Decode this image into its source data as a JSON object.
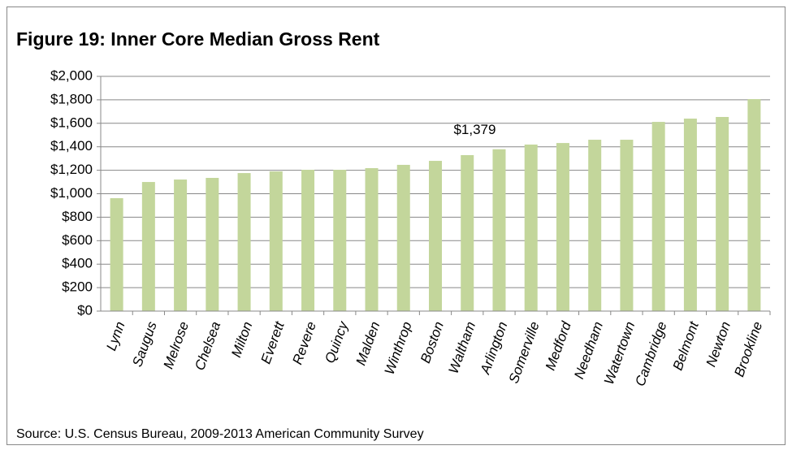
{
  "chart_data": {
    "type": "bar",
    "title": "Figure 19: Inner Core Median Gross Rent",
    "source": "Source: U.S. Census Bureau, 2009-2013 American Community Survey",
    "categories": [
      "Lynn",
      "Saugus",
      "Melrose",
      "Chelsea",
      "Milton",
      "Everett",
      "Revere",
      "Quincy",
      "Malden",
      "Winthrop",
      "Boston",
      "Waltham",
      "Arlington",
      "Somerville",
      "Medford",
      "Needham",
      "Watertown",
      "Cambridge",
      "Belmont",
      "Newton",
      "Brookline"
    ],
    "values": [
      962,
      1100,
      1121,
      1135,
      1176,
      1190,
      1204,
      1204,
      1218,
      1246,
      1280,
      1329,
      1379,
      1419,
      1432,
      1460,
      1460,
      1612,
      1640,
      1654,
      1806
    ],
    "value_labels": [
      null,
      null,
      null,
      null,
      null,
      null,
      null,
      null,
      null,
      null,
      null,
      null,
      "$1,379",
      null,
      null,
      null,
      null,
      null,
      null,
      null,
      null
    ],
    "color": "#c3d69b",
    "ylim": [
      0,
      2000
    ],
    "yticks": [
      {
        "value": 0,
        "label": "$0"
      },
      {
        "value": 200,
        "label": "$200"
      },
      {
        "value": 400,
        "label": "$400"
      },
      {
        "value": 600,
        "label": "$600"
      },
      {
        "value": 800,
        "label": "$800"
      },
      {
        "value": 1000,
        "label": "$1,000"
      },
      {
        "value": 1200,
        "label": "$1,200"
      },
      {
        "value": 1400,
        "label": "$1,400"
      },
      {
        "value": 1600,
        "label": "$1,600"
      },
      {
        "value": 1800,
        "label": "$1,800"
      },
      {
        "value": 2000,
        "label": "$2,000"
      }
    ],
    "grid": true
  }
}
